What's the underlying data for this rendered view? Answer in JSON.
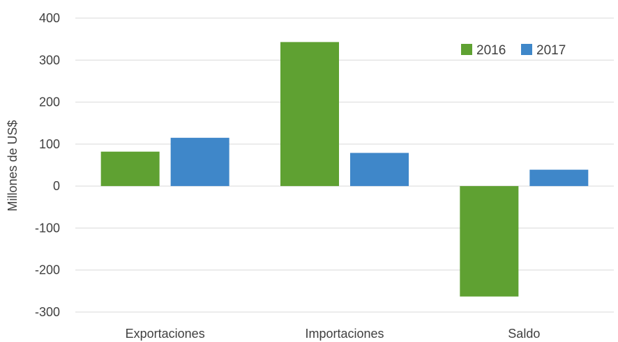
{
  "chart_data": {
    "type": "bar",
    "title": "",
    "xlabel": "",
    "ylabel": "Millones de US$",
    "categories": [
      "Exportaciones",
      "Importaciones",
      "Saldo"
    ],
    "series": [
      {
        "name": "2016",
        "color": "#5fa132",
        "values": [
          82,
          343,
          -263
        ]
      },
      {
        "name": "2017",
        "color": "#3f87c9",
        "values": [
          115,
          79,
          39
        ]
      }
    ],
    "ylim": [
      -300,
      400
    ],
    "yticks": [
      400,
      300,
      200,
      100,
      0,
      -100,
      -200,
      -300
    ],
    "grid": true,
    "legend_position": "top-right"
  }
}
